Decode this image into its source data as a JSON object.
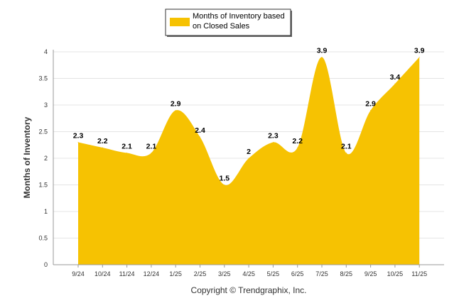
{
  "chart_data": {
    "type": "area",
    "categories": [
      "9/24",
      "10/24",
      "11/24",
      "12/24",
      "1/25",
      "2/25",
      "3/25",
      "4/25",
      "5/25",
      "6/25",
      "7/25",
      "8/25",
      "9/25",
      "10/25",
      "11/25"
    ],
    "series": [
      {
        "name": "Months of Inventory based on Closed Sales",
        "values": [
          2.3,
          2.2,
          2.1,
          2.1,
          2.9,
          2.4,
          1.5,
          2,
          2.3,
          2.2,
          3.9,
          2.1,
          2.9,
          3.4,
          3.9
        ],
        "labels": [
          "2.3",
          "2.2",
          "2.1",
          "2.1",
          "2.9",
          "2.4",
          "1.5",
          "2",
          "2.3",
          "2.2",
          "3.9",
          "2.1",
          "2.9",
          "3.4",
          "3.9"
        ],
        "color": "#F6C202"
      }
    ],
    "ylabel": "Months of Inventory",
    "xlabel": "",
    "ylim": [
      0,
      4
    ],
    "yticks": [
      "0",
      "0.5",
      "1",
      "1.5",
      "2",
      "2.5",
      "3",
      "3.5",
      "4"
    ],
    "grid": true,
    "legend_position": "top-center"
  },
  "footer": {
    "copyright": "Copyright © Trendgraphix, Inc."
  },
  "legend": {
    "line1": "Months of Inventory based",
    "line2": "on Closed Sales"
  }
}
